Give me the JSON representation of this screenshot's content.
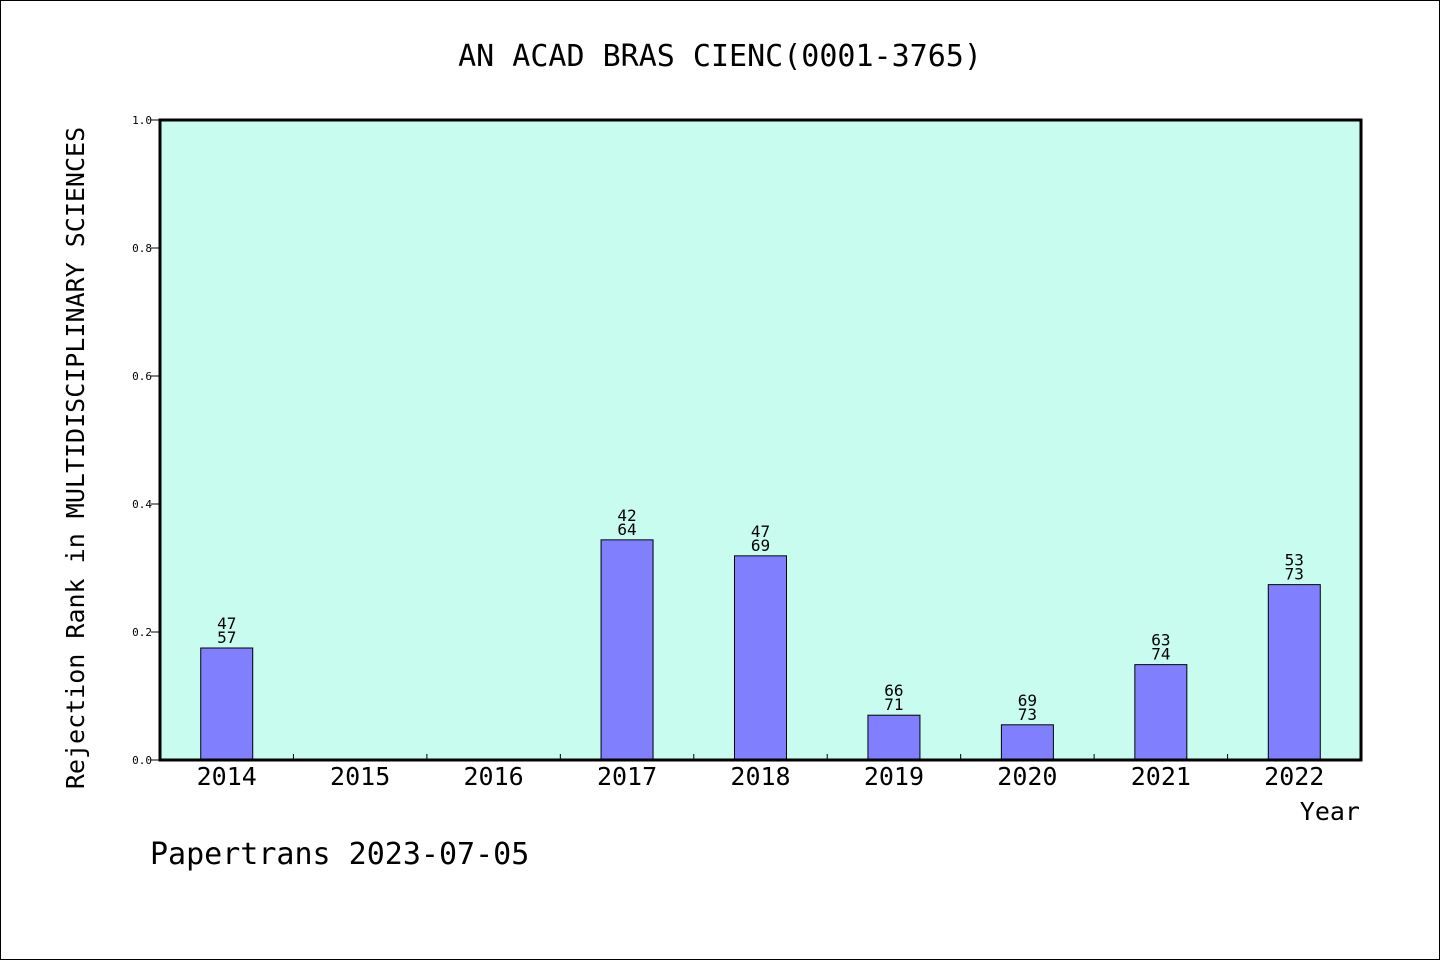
{
  "chart_data": {
    "type": "bar",
    "title": "AN ACAD BRAS CIENC(0001-3765)",
    "xlabel": "Year",
    "ylabel": "Rejection Rank in MULTIDISCIPLINARY SCIENCES",
    "ylim": [
      0,
      1.0
    ],
    "yticks": [
      "0.0",
      "0.2",
      "0.4",
      "0.6",
      "0.8",
      "1.0"
    ],
    "categories": [
      "2014",
      "2015",
      "2016",
      "2017",
      "2018",
      "2019",
      "2020",
      "2021",
      "2022"
    ],
    "values": [
      0.175,
      null,
      null,
      0.344,
      0.319,
      0.07,
      0.055,
      0.149,
      0.274
    ],
    "labels_top": [
      "47",
      "",
      "",
      "42",
      "47",
      "66",
      "69",
      "63",
      "53"
    ],
    "labels_bottom": [
      "57",
      "",
      "",
      "64",
      "69",
      "71",
      "73",
      "74",
      "73"
    ],
    "grid": false,
    "colors": {
      "plot_background": "#c8fcee",
      "bar_fill": "#8080ff",
      "bar_stroke": "#000000"
    }
  },
  "footer": "Papertrans 2023-07-05"
}
